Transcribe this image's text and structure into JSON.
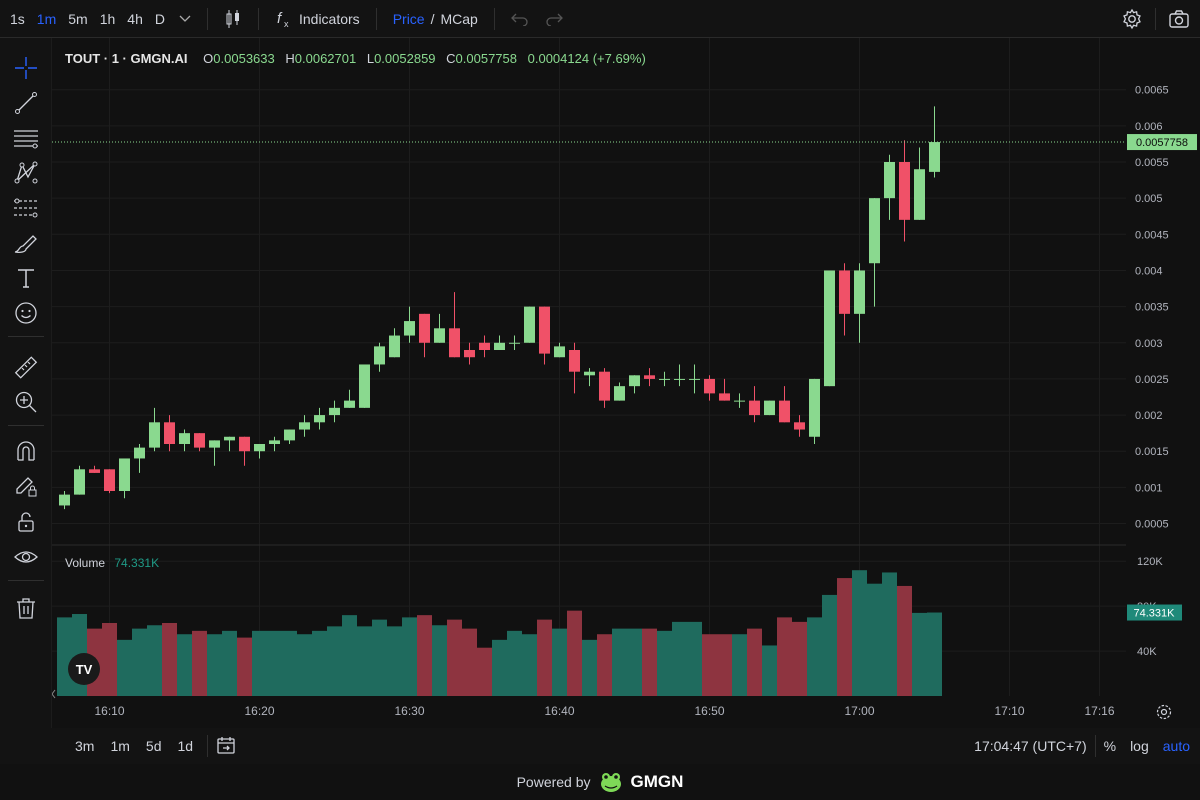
{
  "toolbar": {
    "timeframes": [
      "1s",
      "1m",
      "5m",
      "1h",
      "4h",
      "D"
    ],
    "active_timeframe": "1m",
    "indicators_label": "Indicators",
    "price_label": "Price",
    "slash": "/",
    "mcap_label": "MCap"
  },
  "legend": {
    "symbol": "TOUT · 1 · GMGN.AI",
    "o_label": "O",
    "o_value": "0.0053633",
    "h_label": "H",
    "h_value": "0.0062701",
    "l_label": "L",
    "l_value": "0.0052859",
    "c_label": "C",
    "c_value": "0.0057758",
    "change": "0.0004124 (+7.69%)",
    "volume_label": "Volume",
    "volume_value": "74.331K"
  },
  "price_axis": {
    "ticks": [
      "0.0065",
      "0.006",
      "0.0055",
      "0.005",
      "0.0045",
      "0.004",
      "0.0035",
      "0.003",
      "0.0025",
      "0.002",
      "0.0015",
      "0.001",
      "0.0005"
    ],
    "current_price_label": "0.0057758"
  },
  "volume_axis": {
    "ticks": [
      "120K",
      "80K",
      "40K"
    ],
    "current_volume_label": "74.331K"
  },
  "time_axis": {
    "ticks": [
      "16:10",
      "16:20",
      "16:30",
      "16:40",
      "16:50",
      "17:00",
      "17:10",
      "17:16"
    ]
  },
  "bottom": {
    "ranges": [
      "3m",
      "1m",
      "5d",
      "1d"
    ],
    "clock": "17:04:47 (UTC+7)",
    "percent": "%",
    "log": "log",
    "auto": "auto"
  },
  "footer": {
    "powered_by": "Powered by",
    "brand": "GMGN"
  },
  "colors": {
    "up": "#8ad98f",
    "down": "#f05168",
    "vol_up": "#1f6b5e",
    "vol_down": "#8e3440",
    "accent": "#2962ff",
    "price_tag": "#8ad98f",
    "vol_tag": "#1f8a7a"
  },
  "chart_data": {
    "type": "candlestick",
    "interval_minutes": 1,
    "x_start": "16:07",
    "ylim": [
      0.0003,
      0.0068
    ],
    "volume_ylim": [
      0,
      130000
    ],
    "candles": [
      {
        "t": "16:07",
        "o": 0.00075,
        "h": 0.00095,
        "l": 0.0007,
        "c": 0.0009,
        "v": 70000
      },
      {
        "t": "16:08",
        "o": 0.0009,
        "h": 0.0013,
        "l": 0.0009,
        "c": 0.00125,
        "v": 73000
      },
      {
        "t": "16:09",
        "o": 0.00125,
        "h": 0.0013,
        "l": 0.0012,
        "c": 0.0012,
        "v": 60000
      },
      {
        "t": "16:10",
        "o": 0.00125,
        "h": 0.00125,
        "l": 0.00092,
        "c": 0.00095,
        "v": 65000
      },
      {
        "t": "16:11",
        "o": 0.00095,
        "h": 0.0014,
        "l": 0.00085,
        "c": 0.0014,
        "v": 50000
      },
      {
        "t": "16:12",
        "o": 0.0014,
        "h": 0.0016,
        "l": 0.0012,
        "c": 0.00155,
        "v": 60000
      },
      {
        "t": "16:13",
        "o": 0.00155,
        "h": 0.0021,
        "l": 0.0015,
        "c": 0.0019,
        "v": 63000
      },
      {
        "t": "16:14",
        "o": 0.0019,
        "h": 0.002,
        "l": 0.0015,
        "c": 0.0016,
        "v": 65000
      },
      {
        "t": "16:15",
        "o": 0.0016,
        "h": 0.0018,
        "l": 0.0015,
        "c": 0.00175,
        "v": 55000
      },
      {
        "t": "16:16",
        "o": 0.00175,
        "h": 0.00175,
        "l": 0.0015,
        "c": 0.00155,
        "v": 58000
      },
      {
        "t": "16:17",
        "o": 0.00155,
        "h": 0.00165,
        "l": 0.0013,
        "c": 0.00165,
        "v": 55000
      },
      {
        "t": "16:18",
        "o": 0.00165,
        "h": 0.0017,
        "l": 0.0015,
        "c": 0.0017,
        "v": 58000
      },
      {
        "t": "16:19",
        "o": 0.0017,
        "h": 0.0017,
        "l": 0.0013,
        "c": 0.0015,
        "v": 52000
      },
      {
        "t": "16:20",
        "o": 0.0015,
        "h": 0.0016,
        "l": 0.0014,
        "c": 0.0016,
        "v": 58000
      },
      {
        "t": "16:21",
        "o": 0.0016,
        "h": 0.0017,
        "l": 0.0015,
        "c": 0.00165,
        "v": 58000
      },
      {
        "t": "16:22",
        "o": 0.00165,
        "h": 0.0018,
        "l": 0.0016,
        "c": 0.0018,
        "v": 58000
      },
      {
        "t": "16:23",
        "o": 0.0018,
        "h": 0.002,
        "l": 0.0017,
        "c": 0.0019,
        "v": 55000
      },
      {
        "t": "16:24",
        "o": 0.0019,
        "h": 0.0021,
        "l": 0.0018,
        "c": 0.002,
        "v": 58000
      },
      {
        "t": "16:25",
        "o": 0.002,
        "h": 0.0022,
        "l": 0.0019,
        "c": 0.0021,
        "v": 62000
      },
      {
        "t": "16:26",
        "o": 0.0021,
        "h": 0.00235,
        "l": 0.0021,
        "c": 0.0022,
        "v": 72000
      },
      {
        "t": "16:27",
        "o": 0.0021,
        "h": 0.00265,
        "l": 0.0021,
        "c": 0.0027,
        "v": 62000
      },
      {
        "t": "16:28",
        "o": 0.0027,
        "h": 0.003,
        "l": 0.0026,
        "c": 0.00295,
        "v": 68000
      },
      {
        "t": "16:29",
        "o": 0.0028,
        "h": 0.0032,
        "l": 0.0028,
        "c": 0.0031,
        "v": 62000
      },
      {
        "t": "16:30",
        "o": 0.0031,
        "h": 0.0035,
        "l": 0.003,
        "c": 0.0033,
        "v": 70000
      },
      {
        "t": "16:31",
        "o": 0.0034,
        "h": 0.0034,
        "l": 0.0028,
        "c": 0.003,
        "v": 72000
      },
      {
        "t": "16:32",
        "o": 0.003,
        "h": 0.0034,
        "l": 0.003,
        "c": 0.0032,
        "v": 63000
      },
      {
        "t": "16:33",
        "o": 0.0032,
        "h": 0.0037,
        "l": 0.0028,
        "c": 0.0028,
        "v": 68000
      },
      {
        "t": "16:34",
        "o": 0.0029,
        "h": 0.003,
        "l": 0.0027,
        "c": 0.0028,
        "v": 60000
      },
      {
        "t": "16:35",
        "o": 0.003,
        "h": 0.0031,
        "l": 0.0028,
        "c": 0.0029,
        "v": 43000
      },
      {
        "t": "16:36",
        "o": 0.0029,
        "h": 0.0031,
        "l": 0.0029,
        "c": 0.003,
        "v": 50000
      },
      {
        "t": "16:37",
        "o": 0.003,
        "h": 0.0031,
        "l": 0.0029,
        "c": 0.003,
        "v": 58000
      },
      {
        "t": "16:38",
        "o": 0.003,
        "h": 0.0035,
        "l": 0.003,
        "c": 0.0035,
        "v": 55000
      },
      {
        "t": "16:39",
        "o": 0.0035,
        "h": 0.0035,
        "l": 0.0027,
        "c": 0.00285,
        "v": 68000
      },
      {
        "t": "16:40",
        "o": 0.0028,
        "h": 0.003,
        "l": 0.0028,
        "c": 0.00295,
        "v": 60000
      },
      {
        "t": "16:41",
        "o": 0.0029,
        "h": 0.003,
        "l": 0.0023,
        "c": 0.0026,
        "v": 76000
      },
      {
        "t": "16:42",
        "o": 0.00255,
        "h": 0.00265,
        "l": 0.0024,
        "c": 0.0026,
        "v": 50000
      },
      {
        "t": "16:43",
        "o": 0.0026,
        "h": 0.00265,
        "l": 0.0021,
        "c": 0.0022,
        "v": 55000
      },
      {
        "t": "16:44",
        "o": 0.0022,
        "h": 0.00245,
        "l": 0.0022,
        "c": 0.0024,
        "v": 60000
      },
      {
        "t": "16:45",
        "o": 0.0024,
        "h": 0.00255,
        "l": 0.0023,
        "c": 0.00255,
        "v": 60000
      },
      {
        "t": "16:46",
        "o": 0.00255,
        "h": 0.00265,
        "l": 0.0024,
        "c": 0.0025,
        "v": 60000
      },
      {
        "t": "16:47",
        "o": 0.0025,
        "h": 0.0026,
        "l": 0.0024,
        "c": 0.0025,
        "v": 58000
      },
      {
        "t": "16:48",
        "o": 0.0025,
        "h": 0.0027,
        "l": 0.0024,
        "c": 0.0025,
        "v": 66000
      },
      {
        "t": "16:49",
        "o": 0.0025,
        "h": 0.0027,
        "l": 0.0023,
        "c": 0.0025,
        "v": 66000
      },
      {
        "t": "16:50",
        "o": 0.0025,
        "h": 0.00255,
        "l": 0.0022,
        "c": 0.0023,
        "v": 55000
      },
      {
        "t": "16:51",
        "o": 0.0023,
        "h": 0.0025,
        "l": 0.0022,
        "c": 0.0022,
        "v": 55000
      },
      {
        "t": "16:52",
        "o": 0.0022,
        "h": 0.0023,
        "l": 0.0021,
        "c": 0.0022,
        "v": 55000
      },
      {
        "t": "16:53",
        "o": 0.0022,
        "h": 0.0024,
        "l": 0.0019,
        "c": 0.002,
        "v": 60000
      },
      {
        "t": "16:54",
        "o": 0.002,
        "h": 0.0022,
        "l": 0.002,
        "c": 0.0022,
        "v": 45000
      },
      {
        "t": "16:55",
        "o": 0.0022,
        "h": 0.0024,
        "l": 0.0019,
        "c": 0.0019,
        "v": 70000
      },
      {
        "t": "16:56",
        "o": 0.0019,
        "h": 0.002,
        "l": 0.0017,
        "c": 0.0018,
        "v": 66000
      },
      {
        "t": "16:57",
        "o": 0.0017,
        "h": 0.0025,
        "l": 0.0016,
        "c": 0.0025,
        "v": 70000
      },
      {
        "t": "16:58",
        "o": 0.0024,
        "h": 0.004,
        "l": 0.0024,
        "c": 0.004,
        "v": 90000
      },
      {
        "t": "16:59",
        "o": 0.004,
        "h": 0.0041,
        "l": 0.0031,
        "c": 0.0034,
        "v": 105000
      },
      {
        "t": "17:00",
        "o": 0.0034,
        "h": 0.0041,
        "l": 0.003,
        "c": 0.004,
        "v": 112000
      },
      {
        "t": "17:01",
        "o": 0.0041,
        "h": 0.005,
        "l": 0.0035,
        "c": 0.005,
        "v": 100000
      },
      {
        "t": "17:02",
        "o": 0.005,
        "h": 0.0056,
        "l": 0.0047,
        "c": 0.0055,
        "v": 110000
      },
      {
        "t": "17:03",
        "o": 0.0055,
        "h": 0.0058,
        "l": 0.0044,
        "c": 0.0047,
        "v": 98000
      },
      {
        "t": "17:04",
        "o": 0.0047,
        "h": 0.0057,
        "l": 0.0047,
        "c": 0.0054,
        "v": 74000
      },
      {
        "t": "17:05",
        "o": 0.0053633,
        "h": 0.0062701,
        "l": 0.0052859,
        "c": 0.0057758,
        "v": 74331
      }
    ]
  }
}
